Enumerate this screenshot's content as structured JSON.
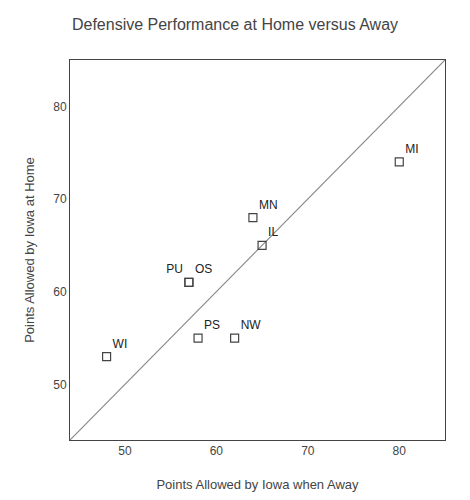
{
  "chart_data": {
    "type": "scatter",
    "title": "Defensive Performance at Home versus Away",
    "xlabel": "Points Allowed by Iowa when Away",
    "ylabel": "Points Allowed by Iowa at Home",
    "series": [
      {
        "type": "scatter",
        "marker": "square-open",
        "color": "#444444",
        "x": [
          48,
          57,
          57,
          58,
          62,
          64,
          65,
          80
        ],
        "values": [
          53,
          61,
          61,
          55,
          55,
          68,
          65,
          74
        ],
        "labels": [
          "WI",
          "PU",
          "OS",
          "PS",
          "NW",
          "MN",
          "IL",
          "MI"
        ]
      },
      {
        "type": "line",
        "line_style": "solid",
        "color": "#888888",
        "x": [
          44,
          85
        ],
        "values": [
          44,
          85
        ]
      }
    ],
    "xlim": [
      44,
      85
    ],
    "ylim": [
      44,
      85
    ],
    "xticks": [
      50,
      60,
      70,
      80
    ],
    "yticks": [
      50,
      60,
      70,
      80
    ],
    "grid": false
  }
}
